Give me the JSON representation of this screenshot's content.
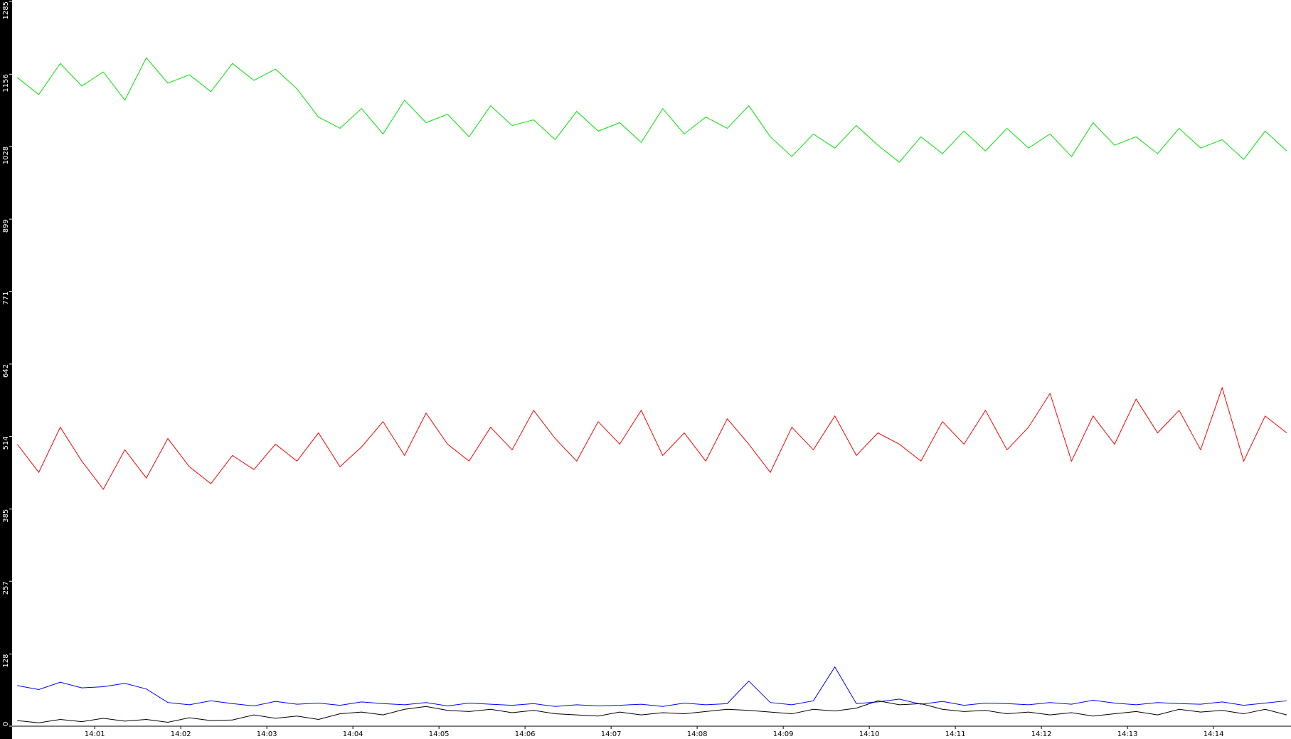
{
  "chart_data": {
    "type": "line",
    "x": [
      0.1,
      0.35,
      0.6,
      0.85,
      1.1,
      1.35,
      1.6,
      1.85,
      2.1,
      2.35,
      2.6,
      2.85,
      3.1,
      3.35,
      3.6,
      3.85,
      4.1,
      4.35,
      4.6,
      4.85,
      5.1,
      5.35,
      5.6,
      5.85,
      6.1,
      6.35,
      6.6,
      6.85,
      7.1,
      7.35,
      7.6,
      7.85,
      8.1,
      8.35,
      8.6,
      8.85,
      9.1,
      9.35,
      9.6,
      9.85,
      10.1,
      10.35,
      10.6,
      10.85,
      11.1,
      11.35,
      11.6,
      11.85,
      12.1,
      12.35,
      12.6,
      12.85,
      13.1,
      13.35,
      13.6,
      13.85,
      14.1,
      14.35,
      14.6,
      14.85
    ],
    "xlim": [
      0.04,
      14.9
    ],
    "xticks": [
      {
        "value": 1,
        "label": "14:01"
      },
      {
        "value": 2,
        "label": "14:02"
      },
      {
        "value": 3,
        "label": "14:03"
      },
      {
        "value": 4,
        "label": "14:04"
      },
      {
        "value": 5,
        "label": "14:05"
      },
      {
        "value": 6,
        "label": "14:06"
      },
      {
        "value": 7,
        "label": "14:07"
      },
      {
        "value": 8,
        "label": "14:08"
      },
      {
        "value": 9,
        "label": "14:09"
      },
      {
        "value": 10,
        "label": "14:10"
      },
      {
        "value": 11,
        "label": "14:11"
      },
      {
        "value": 12,
        "label": "14:12"
      },
      {
        "value": 13,
        "label": "14:13"
      },
      {
        "value": 14,
        "label": "14:14"
      }
    ],
    "ylim": [
      0,
      1285
    ],
    "yticks": [
      0,
      128,
      257,
      385,
      514,
      642,
      771,
      899,
      1028,
      1156,
      1285
    ],
    "series": [
      {
        "color": "#00e600",
        "values": [
          1150,
          1120,
          1175,
          1135,
          1160,
          1110,
          1185,
          1140,
          1155,
          1125,
          1175,
          1145,
          1165,
          1130,
          1080,
          1060,
          1095,
          1050,
          1110,
          1070,
          1085,
          1045,
          1100,
          1065,
          1075,
          1040,
          1090,
          1055,
          1070,
          1035,
          1095,
          1050,
          1080,
          1060,
          1100,
          1045,
          1010,
          1050,
          1025,
          1065,
          1030,
          1000,
          1045,
          1015,
          1055,
          1020,
          1060,
          1025,
          1050,
          1010,
          1070,
          1030,
          1045,
          1015,
          1060,
          1025,
          1040,
          1005,
          1055,
          1020
        ]
      },
      {
        "color": "#ff0000",
        "values": [
          500,
          450,
          530,
          470,
          420,
          490,
          440,
          510,
          460,
          430,
          480,
          455,
          500,
          470,
          520,
          460,
          495,
          540,
          480,
          555,
          500,
          470,
          530,
          490,
          560,
          510,
          470,
          540,
          500,
          560,
          480,
          520,
          470,
          545,
          500,
          450,
          530,
          490,
          550,
          480,
          520,
          500,
          470,
          540,
          500,
          560,
          490,
          530,
          590,
          470,
          550,
          500,
          580,
          520,
          560,
          490,
          600,
          470,
          550,
          520
        ]
      },
      {
        "color": "#0000ff",
        "values": [
          72,
          65,
          78,
          68,
          70,
          76,
          66,
          42,
          38,
          45,
          40,
          36,
          44,
          39,
          41,
          37,
          43,
          40,
          38,
          42,
          36,
          41,
          39,
          37,
          40,
          35,
          38,
          36,
          37,
          39,
          35,
          41,
          38,
          40,
          80,
          42,
          38,
          45,
          105,
          40,
          43,
          48,
          39,
          44,
          37,
          41,
          40,
          38,
          42,
          39,
          46,
          41,
          38,
          42,
          40,
          39,
          43,
          37,
          41,
          45
        ]
      },
      {
        "color": "#000000",
        "values": [
          10,
          6,
          12,
          8,
          14,
          9,
          12,
          7,
          15,
          10,
          11,
          20,
          14,
          18,
          12,
          22,
          25,
          20,
          30,
          35,
          28,
          26,
          30,
          24,
          28,
          22,
          20,
          18,
          25,
          20,
          24,
          22,
          26,
          30,
          28,
          25,
          22,
          30,
          27,
          32,
          45,
          38,
          40,
          30,
          26,
          28,
          22,
          25,
          20,
          24,
          18,
          22,
          26,
          20,
          30,
          25,
          28,
          22,
          30,
          20
        ]
      }
    ]
  }
}
